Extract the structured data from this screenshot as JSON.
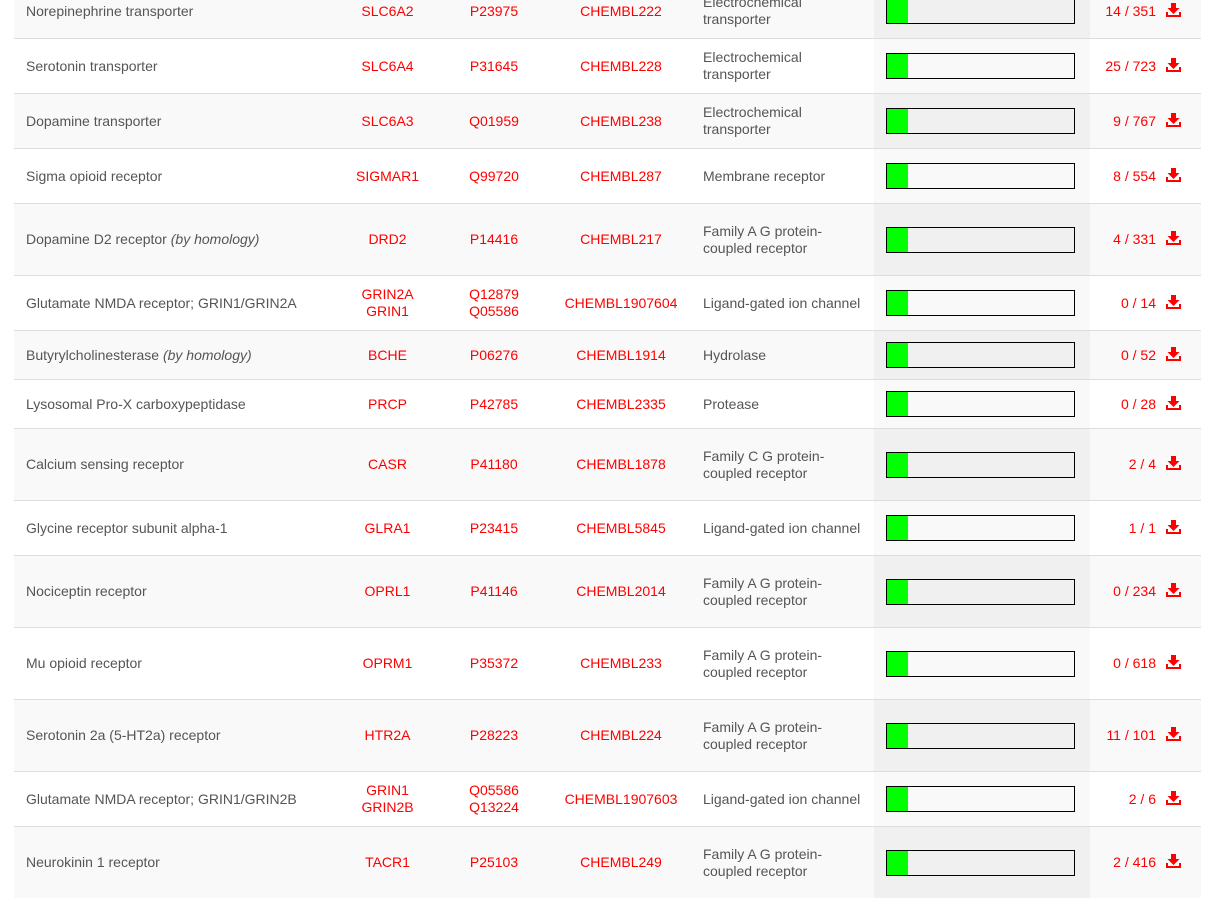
{
  "colors": {
    "link": "#ff0000",
    "bar_fill": "#00ff00"
  },
  "rows": [
    {
      "target": "Norepinephrine transporter",
      "note": "",
      "gene": [
        "SLC6A2"
      ],
      "uniprot": [
        "P23975"
      ],
      "chembl": "CHEMBL222",
      "class": "Electrochemical transporter",
      "probability": 0.11,
      "count": "14 / 351",
      "h": "h2"
    },
    {
      "target": "Serotonin transporter",
      "note": "",
      "gene": [
        "SLC6A4"
      ],
      "uniprot": [
        "P31645"
      ],
      "chembl": "CHEMBL228",
      "class": "Electrochemical transporter",
      "probability": 0.11,
      "count": "25 / 723",
      "h": "h2"
    },
    {
      "target": "Dopamine transporter",
      "note": "",
      "gene": [
        "SLC6A3"
      ],
      "uniprot": [
        "Q01959"
      ],
      "chembl": "CHEMBL238",
      "class": "Electrochemical transporter",
      "probability": 0.11,
      "count": "9 / 767",
      "h": "h2"
    },
    {
      "target": "Sigma opioid receptor",
      "note": "",
      "gene": [
        "SIGMAR1"
      ],
      "uniprot": [
        "Q99720"
      ],
      "chembl": "CHEMBL287",
      "class": "Membrane receptor",
      "probability": 0.11,
      "count": "8 / 554",
      "h": "h2"
    },
    {
      "target": "Dopamine D2 receptor",
      "note": "(by homology)",
      "gene": [
        "DRD2"
      ],
      "uniprot": [
        "P14416"
      ],
      "chembl": "CHEMBL217",
      "class": "Family A G protein-coupled receptor",
      "probability": 0.11,
      "count": "4 / 331",
      "h": "h3"
    },
    {
      "target": "Glutamate NMDA receptor; GRIN1/GRIN2A",
      "note": "",
      "gene": [
        "GRIN2A",
        "GRIN1"
      ],
      "uniprot": [
        "Q12879",
        "Q05586"
      ],
      "chembl": "CHEMBL1907604",
      "class": "Ligand-gated ion channel",
      "probability": 0.11,
      "count": "0 / 14",
      "h": "h2"
    },
    {
      "target": "Butyrylcholinesterase",
      "note": "(by homology)",
      "gene": [
        "BCHE"
      ],
      "uniprot": [
        "P06276"
      ],
      "chembl": "CHEMBL1914",
      "class": "Hydrolase",
      "probability": 0.11,
      "count": "0 / 52",
      "h": "h1"
    },
    {
      "target": "Lysosomal Pro-X carboxypeptidase",
      "note": "",
      "gene": [
        "PRCP"
      ],
      "uniprot": [
        "P42785"
      ],
      "chembl": "CHEMBL2335",
      "class": "Protease",
      "probability": 0.11,
      "count": "0 / 28",
      "h": "h1"
    },
    {
      "target": "Calcium sensing receptor",
      "note": "",
      "gene": [
        "CASR"
      ],
      "uniprot": [
        "P41180"
      ],
      "chembl": "CHEMBL1878",
      "class": "Family C G protein-coupled receptor",
      "probability": 0.11,
      "count": "2 / 4",
      "h": "h3"
    },
    {
      "target": "Glycine receptor subunit alpha-1",
      "note": "",
      "gene": [
        "GLRA1"
      ],
      "uniprot": [
        "P23415"
      ],
      "chembl": "CHEMBL5845",
      "class": "Ligand-gated ion channel",
      "probability": 0.11,
      "count": "1 / 1",
      "h": "h2"
    },
    {
      "target": "Nociceptin receptor",
      "note": "",
      "gene": [
        "OPRL1"
      ],
      "uniprot": [
        "P41146"
      ],
      "chembl": "CHEMBL2014",
      "class": "Family A G protein-coupled receptor",
      "probability": 0.11,
      "count": "0 / 234",
      "h": "h3"
    },
    {
      "target": "Mu opioid receptor",
      "note": "",
      "gene": [
        "OPRM1"
      ],
      "uniprot": [
        "P35372"
      ],
      "chembl": "CHEMBL233",
      "class": "Family A G protein-coupled receptor",
      "probability": 0.11,
      "count": "0 / 618",
      "h": "h3"
    },
    {
      "target": "Serotonin 2a (5-HT2a) receptor",
      "note": "",
      "gene": [
        "HTR2A"
      ],
      "uniprot": [
        "P28223"
      ],
      "chembl": "CHEMBL224",
      "class": "Family A G protein-coupled receptor",
      "probability": 0.11,
      "count": "11 / 101",
      "h": "h3"
    },
    {
      "target": "Glutamate NMDA receptor; GRIN1/GRIN2B",
      "note": "",
      "gene": [
        "GRIN1",
        "GRIN2B"
      ],
      "uniprot": [
        "Q05586",
        "Q13224"
      ],
      "chembl": "CHEMBL1907603",
      "class": "Ligand-gated ion channel",
      "probability": 0.11,
      "count": "2 / 6",
      "h": "h2"
    },
    {
      "target": "Neurokinin 1 receptor",
      "note": "",
      "gene": [
        "TACR1"
      ],
      "uniprot": [
        "P25103"
      ],
      "chembl": "CHEMBL249",
      "class": "Family A G protein-coupled receptor",
      "probability": 0.11,
      "count": "2 / 416",
      "h": "h3"
    }
  ]
}
